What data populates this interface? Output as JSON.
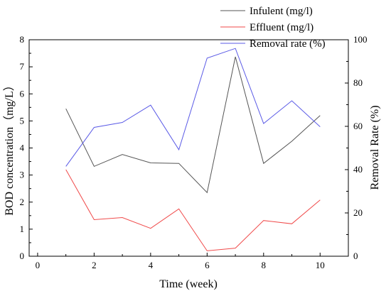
{
  "chart_data": {
    "type": "line",
    "x": [
      1,
      2,
      3,
      4,
      5,
      6,
      7,
      8,
      9,
      10
    ],
    "xlabel": "Time (week)",
    "ylabel": "BOD concentration（mg/L）",
    "y2label": "Removal Rate (%)",
    "xlim": [
      -0.3,
      11.0
    ],
    "ylim": [
      0,
      8
    ],
    "y2lim": [
      0,
      100
    ],
    "xticks": [
      0,
      2,
      4,
      6,
      8,
      10
    ],
    "yticks": [
      0,
      1,
      2,
      3,
      4,
      5,
      6,
      7,
      8
    ],
    "y2ticks": [
      0,
      20,
      40,
      60,
      80,
      100
    ],
    "grid": false,
    "legend_position": "top-right",
    "series": [
      {
        "name": "Infulent (mg/l)",
        "axis": "left",
        "color": "#555555",
        "values": [
          5.45,
          3.32,
          3.76,
          3.45,
          3.43,
          2.35,
          7.37,
          3.43,
          4.25,
          5.2
        ]
      },
      {
        "name": "Effluent (mg/l)",
        "axis": "left",
        "color": "#f04a4a",
        "values": [
          3.2,
          1.35,
          1.43,
          1.03,
          1.75,
          0.2,
          0.3,
          1.32,
          1.2,
          2.08
        ]
      },
      {
        "name": "Removal rate (%)",
        "axis": "right",
        "color": "#5a5ae6",
        "values": [
          41.5,
          59.5,
          61.8,
          69.8,
          49.2,
          91.5,
          96.0,
          61.3,
          71.8,
          59.8
        ]
      }
    ]
  }
}
